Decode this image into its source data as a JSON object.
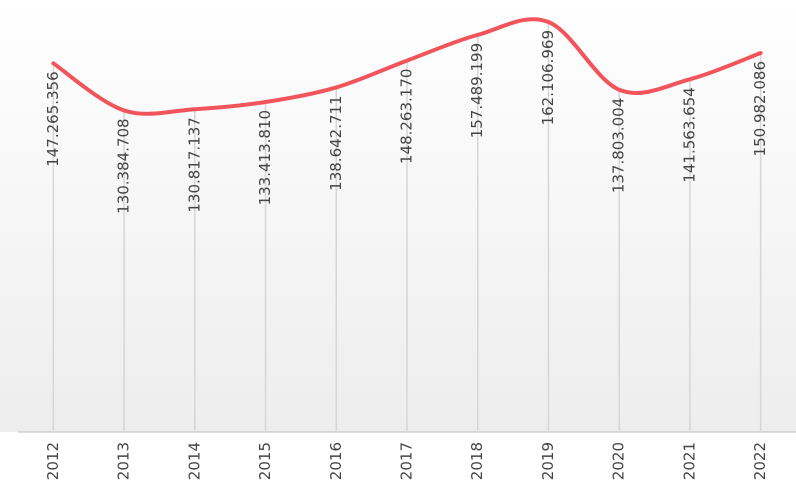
{
  "chart_data": {
    "type": "line",
    "categories": [
      "2012",
      "2013",
      "2014",
      "2015",
      "2016",
      "2017",
      "2018",
      "2019",
      "2020",
      "2021",
      "2022"
    ],
    "values": [
      147265356,
      130384708,
      130817137,
      133413810,
      138642711,
      148263170,
      157489199,
      162106969,
      137803004,
      141563654,
      150982086
    ],
    "value_labels": [
      "147.265.356",
      "130.384.708",
      "130.817.137",
      "133.413.810",
      "138.642.711",
      "148.263.170",
      "157.489.199",
      "162.106.969",
      "137.803.004",
      "141.563.654",
      "150.982.086"
    ],
    "color": "#f2545b",
    "ylim": [
      15000000,
      170000000
    ],
    "smooth": true,
    "grid": true
  }
}
